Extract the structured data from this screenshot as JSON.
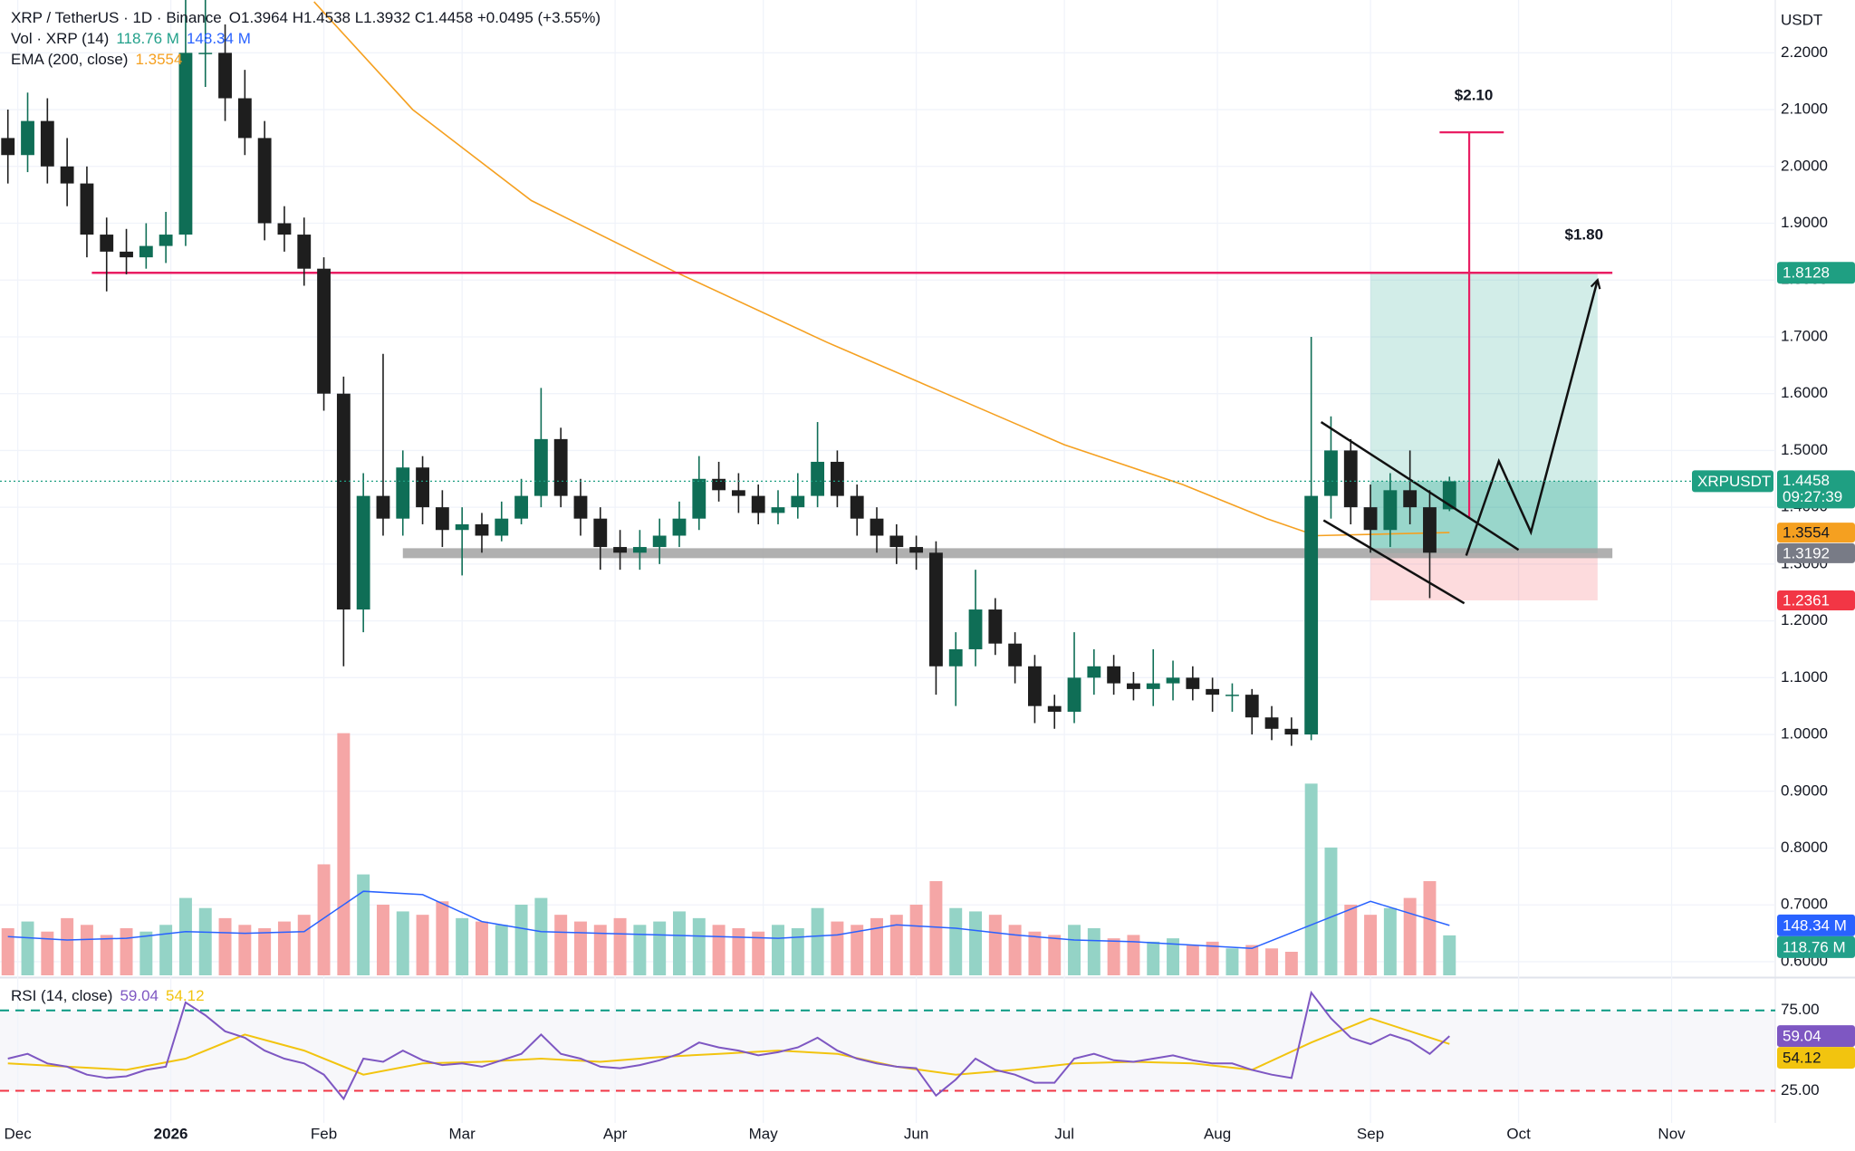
{
  "chart_data": {
    "type": "candlestick",
    "title": "XRP / TetherUS · 1D · Binance",
    "ohlc_text": "O1.3964 H1.4538 L1.3932 C1.4458 +0.0495 (+3.55%)",
    "currency": "USDT",
    "symbol": "XRPUSDT",
    "countdown": "09:27:39",
    "price_color": "#1f9f82",
    "xlim": [
      -3.6,
      356
    ],
    "ylim": [
      0.576,
      2.293
    ],
    "y2lim": [
      0,
      2900
    ],
    "grid": true,
    "xticks": [
      {
        "value": 0,
        "label": "Dec"
      },
      {
        "value": 31,
        "label": "2026"
      },
      {
        "value": 62,
        "label": "Feb"
      },
      {
        "value": 90,
        "label": "Mar"
      },
      {
        "value": 121,
        "label": "Apr"
      },
      {
        "value": 151,
        "label": "May"
      },
      {
        "value": 182,
        "label": "Jun"
      },
      {
        "value": 212,
        "label": "Jul"
      },
      {
        "value": 243,
        "label": "Aug"
      },
      {
        "value": 274,
        "label": "Sep"
      },
      {
        "value": 304,
        "label": "Oct"
      },
      {
        "value": 335,
        "label": "Nov"
      }
    ],
    "yticks": [
      {
        "value": 0.6,
        "label": "0.6000"
      },
      {
        "value": 0.7,
        "label": "0.7000"
      },
      {
        "value": 0.8,
        "label": "0.8000"
      },
      {
        "value": 0.9,
        "label": "0.9000"
      },
      {
        "value": 1.0,
        "label": "1.0000"
      },
      {
        "value": 1.1,
        "label": "1.1000"
      },
      {
        "value": 1.2,
        "label": "1.2000"
      },
      {
        "value": 1.3,
        "label": "1.3000"
      },
      {
        "value": 1.4,
        "label": "1.4000"
      },
      {
        "value": 1.5,
        "label": "1.5000"
      },
      {
        "value": 1.6,
        "label": "1.6000"
      },
      {
        "value": 1.7,
        "label": "1.7000"
      },
      {
        "value": 1.8,
        "label": "1.8000"
      },
      {
        "value": 1.9,
        "label": "1.9000"
      },
      {
        "value": 2.0,
        "label": "2.0000"
      },
      {
        "value": 2.1,
        "label": "2.1000"
      },
      {
        "value": 2.2,
        "label": "2.2000"
      }
    ],
    "candles": {
      "up_color": "#0f6e56",
      "down_color": "#1e1e1e",
      "x": [
        -2,
        2,
        6,
        10,
        14,
        18,
        22,
        26,
        30,
        34,
        38,
        42,
        46,
        50,
        54,
        58,
        62,
        66,
        70,
        74,
        78,
        82,
        86,
        90,
        94,
        98,
        102,
        106,
        110,
        114,
        118,
        122,
        126,
        130,
        134,
        138,
        142,
        146,
        150,
        154,
        158,
        162,
        166,
        170,
        174,
        178,
        182,
        186,
        190,
        194,
        198,
        202,
        206,
        210,
        214,
        218,
        222,
        226,
        230,
        234,
        238,
        242,
        246,
        250,
        254,
        258,
        262,
        266,
        270,
        274,
        278,
        282,
        286,
        290
      ],
      "open": [
        2.05,
        2.02,
        2.08,
        2.0,
        1.97,
        1.88,
        1.85,
        1.84,
        1.86,
        1.88,
        2.2,
        2.2,
        2.12,
        2.05,
        1.9,
        1.88,
        1.82,
        1.6,
        1.22,
        1.42,
        1.38,
        1.47,
        1.4,
        1.36,
        1.37,
        1.35,
        1.38,
        1.42,
        1.52,
        1.42,
        1.38,
        1.33,
        1.32,
        1.33,
        1.35,
        1.38,
        1.45,
        1.43,
        1.42,
        1.39,
        1.4,
        1.42,
        1.48,
        1.42,
        1.38,
        1.35,
        1.33,
        1.32,
        1.12,
        1.15,
        1.22,
        1.16,
        1.12,
        1.05,
        1.04,
        1.1,
        1.12,
        1.09,
        1.08,
        1.09,
        1.1,
        1.08,
        1.07,
        1.07,
        1.03,
        1.01,
        1.0,
        1.42,
        1.5,
        1.4,
        1.36,
        1.43,
        1.4,
        1.3964
      ],
      "high": [
        2.1,
        2.13,
        2.12,
        2.05,
        2.0,
        1.91,
        1.89,
        1.9,
        1.92,
        2.32,
        2.3,
        2.25,
        2.17,
        2.08,
        1.93,
        1.91,
        1.84,
        1.63,
        1.46,
        1.67,
        1.5,
        1.49,
        1.43,
        1.4,
        1.39,
        1.41,
        1.45,
        1.61,
        1.54,
        1.45,
        1.4,
        1.36,
        1.36,
        1.38,
        1.41,
        1.49,
        1.48,
        1.46,
        1.44,
        1.43,
        1.46,
        1.55,
        1.5,
        1.44,
        1.4,
        1.37,
        1.35,
        1.34,
        1.18,
        1.29,
        1.24,
        1.18,
        1.14,
        1.07,
        1.18,
        1.15,
        1.14,
        1.11,
        1.15,
        1.13,
        1.12,
        1.1,
        1.09,
        1.08,
        1.05,
        1.03,
        1.7,
        1.56,
        1.52,
        1.44,
        1.46,
        1.5,
        1.43,
        1.4538
      ],
      "low": [
        1.97,
        1.99,
        1.97,
        1.93,
        1.84,
        1.78,
        1.81,
        1.82,
        1.83,
        1.86,
        2.14,
        2.08,
        2.02,
        1.87,
        1.85,
        1.79,
        1.57,
        1.12,
        1.18,
        1.35,
        1.35,
        1.37,
        1.33,
        1.28,
        1.32,
        1.34,
        1.37,
        1.4,
        1.4,
        1.35,
        1.29,
        1.29,
        1.29,
        1.3,
        1.33,
        1.36,
        1.41,
        1.39,
        1.37,
        1.37,
        1.38,
        1.4,
        1.4,
        1.35,
        1.32,
        1.3,
        1.29,
        1.07,
        1.05,
        1.12,
        1.14,
        1.09,
        1.02,
        1.01,
        1.02,
        1.07,
        1.07,
        1.06,
        1.05,
        1.06,
        1.06,
        1.04,
        1.04,
        1.0,
        0.99,
        0.98,
        0.99,
        1.38,
        1.37,
        1.32,
        1.33,
        1.37,
        1.24,
        1.3932
      ],
      "close": [
        2.02,
        2.08,
        2.0,
        1.97,
        1.88,
        1.85,
        1.84,
        1.86,
        1.88,
        2.2,
        2.2,
        2.12,
        2.05,
        1.9,
        1.88,
        1.82,
        1.6,
        1.22,
        1.42,
        1.38,
        1.47,
        1.4,
        1.36,
        1.37,
        1.35,
        1.38,
        1.42,
        1.52,
        1.42,
        1.38,
        1.33,
        1.32,
        1.33,
        1.35,
        1.38,
        1.45,
        1.43,
        1.42,
        1.39,
        1.4,
        1.42,
        1.48,
        1.42,
        1.38,
        1.35,
        1.33,
        1.32,
        1.12,
        1.15,
        1.22,
        1.16,
        1.12,
        1.05,
        1.04,
        1.1,
        1.12,
        1.09,
        1.08,
        1.09,
        1.1,
        1.08,
        1.07,
        1.07,
        1.03,
        1.01,
        1.0,
        1.42,
        1.5,
        1.4,
        1.36,
        1.43,
        1.4,
        1.32,
        1.4458
      ]
    },
    "volume": {
      "name": "Vol · XRP (14)",
      "axis": "y2",
      "up_color": "#94d3c6",
      "down_color": "#f5a6a6",
      "text_color": "#22a08a",
      "legend": {
        "value": 118.76,
        "label": "118.76 M"
      },
      "values": [
        140,
        160,
        130,
        170,
        150,
        120,
        140,
        130,
        150,
        230,
        200,
        170,
        150,
        140,
        160,
        180,
        330,
        720,
        300,
        210,
        190,
        180,
        220,
        170,
        160,
        150,
        210,
        230,
        180,
        160,
        150,
        170,
        150,
        160,
        190,
        170,
        150,
        140,
        130,
        150,
        140,
        200,
        160,
        150,
        170,
        180,
        210,
        280,
        200,
        190,
        180,
        150,
        130,
        120,
        150,
        140,
        110,
        120,
        100,
        110,
        90,
        100,
        80,
        90,
        80,
        70,
        570,
        380,
        210,
        180,
        200,
        230,
        280,
        118.76
      ]
    },
    "volume_ma": {
      "axis": "y2",
      "color": "#2962ff",
      "legend": {
        "value": 148.34,
        "label": "148.34 M"
      },
      "x": [
        -2,
        10,
        22,
        34,
        46,
        58,
        70,
        82,
        94,
        106,
        118,
        130,
        142,
        154,
        166,
        178,
        190,
        202,
        214,
        226,
        238,
        250,
        262,
        274,
        290
      ],
      "values": [
        115,
        105,
        110,
        130,
        125,
        130,
        250,
        240,
        160,
        130,
        125,
        120,
        115,
        110,
        120,
        150,
        140,
        120,
        105,
        100,
        90,
        80,
        150,
        220,
        148.34
      ]
    },
    "ema": {
      "name": "EMA (200, close)",
      "color": "#f5a020",
      "x": [
        60,
        80,
        104,
        133,
        164,
        188,
        212,
        236,
        253,
        263,
        290
      ],
      "values": [
        2.29,
        2.1,
        1.94,
        1.815,
        1.69,
        1.6,
        1.51,
        1.44,
        1.38,
        1.35,
        1.3554
      ]
    },
    "rsi": {
      "name": "RSI (14, close)",
      "color": "#7e57c2",
      "ylim": [
        5,
        94
      ],
      "yticks": [
        {
          "value": 75,
          "label": "75.00"
        },
        {
          "value": 25,
          "label": "25.00"
        }
      ],
      "upper_color": "#089981",
      "lower_color": "#f23645",
      "values": [
        45,
        48,
        42,
        40,
        35,
        33,
        34,
        38,
        40,
        80,
        72,
        62,
        58,
        50,
        45,
        42,
        35,
        20,
        45,
        43,
        50,
        44,
        41,
        42,
        40,
        44,
        48,
        60,
        48,
        45,
        40,
        39,
        41,
        44,
        48,
        55,
        52,
        50,
        47,
        49,
        52,
        58,
        50,
        45,
        42,
        40,
        39,
        22,
        32,
        45,
        38,
        35,
        30,
        30,
        45,
        48,
        44,
        43,
        45,
        47,
        44,
        42,
        42,
        38,
        35,
        33,
        86,
        70,
        58,
        54,
        60,
        56,
        48,
        59.04
      ]
    },
    "rsi_ma": {
      "color": "#f2c40f",
      "x": [
        -2,
        10,
        22,
        34,
        46,
        58,
        70,
        82,
        94,
        106,
        118,
        130,
        142,
        154,
        166,
        178,
        190,
        202,
        214,
        226,
        238,
        250,
        262,
        274,
        290
      ],
      "values": [
        42,
        40,
        38,
        45,
        60,
        50,
        35,
        42,
        43,
        45,
        43,
        46,
        48,
        50,
        48,
        40,
        35,
        38,
        42,
        43,
        42,
        38,
        55,
        70,
        54.12
      ]
    },
    "position": {
      "x": [
        274,
        320
      ],
      "target": 1.8128,
      "entry": 1.3192,
      "stop": 1.2361,
      "target_color": "#1f9f82",
      "entry_color": "#787b86",
      "stop_color": "#f23645"
    },
    "resistance": {
      "x": [
        15,
        323
      ],
      "color": "#e91e63"
    },
    "support": {
      "x": [
        78,
        323
      ],
      "color": "#a3a3a3"
    },
    "target_projection": {
      "label": "$2.10",
      "x": 294,
      "y": [
        1.38,
        2.06
      ],
      "cap": [
        288,
        301
      ],
      "color": "#e91e63"
    },
    "target_label": "$1.80",
    "channel": [
      [
        [
          264,
          1.55
        ],
        [
          304,
          1.325
        ]
      ],
      [
        [
          264.5,
          1.377
        ],
        [
          293,
          1.231
        ]
      ]
    ],
    "arrow": [
      [
        293.4,
        1.315
      ],
      [
        300,
        1.481
      ],
      [
        306.5,
        1.356
      ],
      [
        320,
        1.8
      ]
    ]
  }
}
